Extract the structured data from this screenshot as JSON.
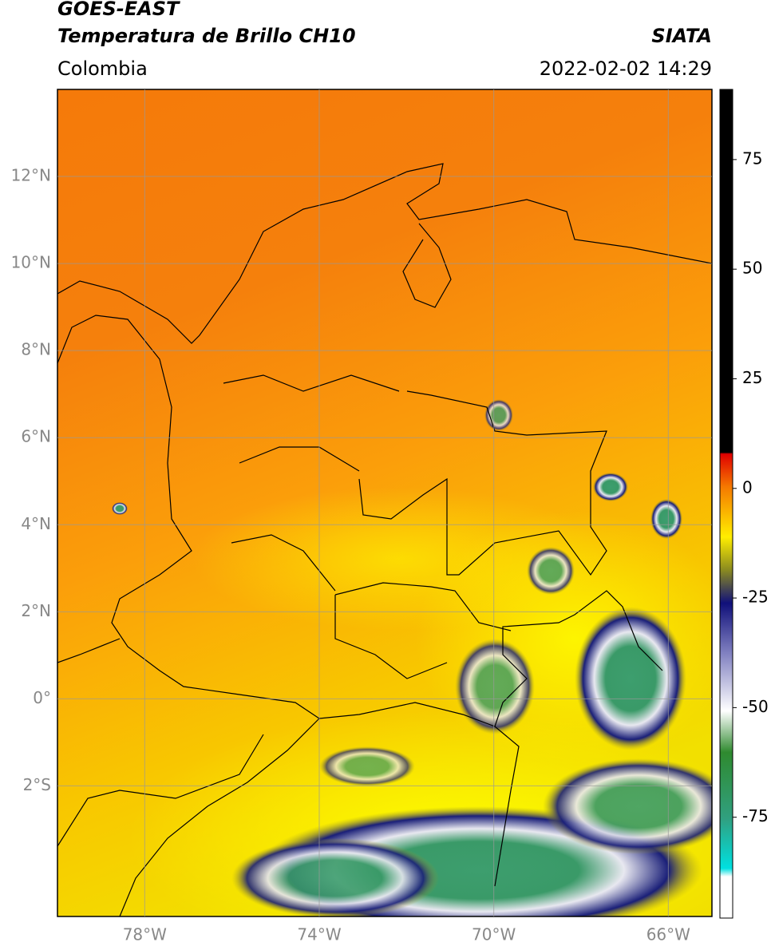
{
  "header": {
    "satellite": "GOES-EAST",
    "product": "Temperatura de Brillo CH10",
    "region": "Colombia",
    "source": "SIATA",
    "datetime": "2022-02-02 14:29"
  },
  "map": {
    "xlim": [
      -80,
      -65
    ],
    "ylim": [
      -5,
      14
    ],
    "lat_ticks": [
      {
        "value": 12,
        "label": "12°N"
      },
      {
        "value": 10,
        "label": "10°N"
      },
      {
        "value": 8,
        "label": "8°N"
      },
      {
        "value": 6,
        "label": "6°N"
      },
      {
        "value": 4,
        "label": "4°N"
      },
      {
        "value": 2,
        "label": "2°N"
      },
      {
        "value": 0,
        "label": "0°"
      },
      {
        "value": -2,
        "label": "2°S"
      }
    ],
    "lon_ticks": [
      {
        "value": -78,
        "label": "78°W"
      },
      {
        "value": -74,
        "label": "74°W"
      },
      {
        "value": -70,
        "label": "70°W"
      },
      {
        "value": -66,
        "label": "66°W"
      }
    ]
  },
  "colorbar": {
    "lim": [
      -98,
      91
    ],
    "ticks": [
      75,
      50,
      25,
      0,
      -25,
      -50,
      -75
    ]
  }
}
